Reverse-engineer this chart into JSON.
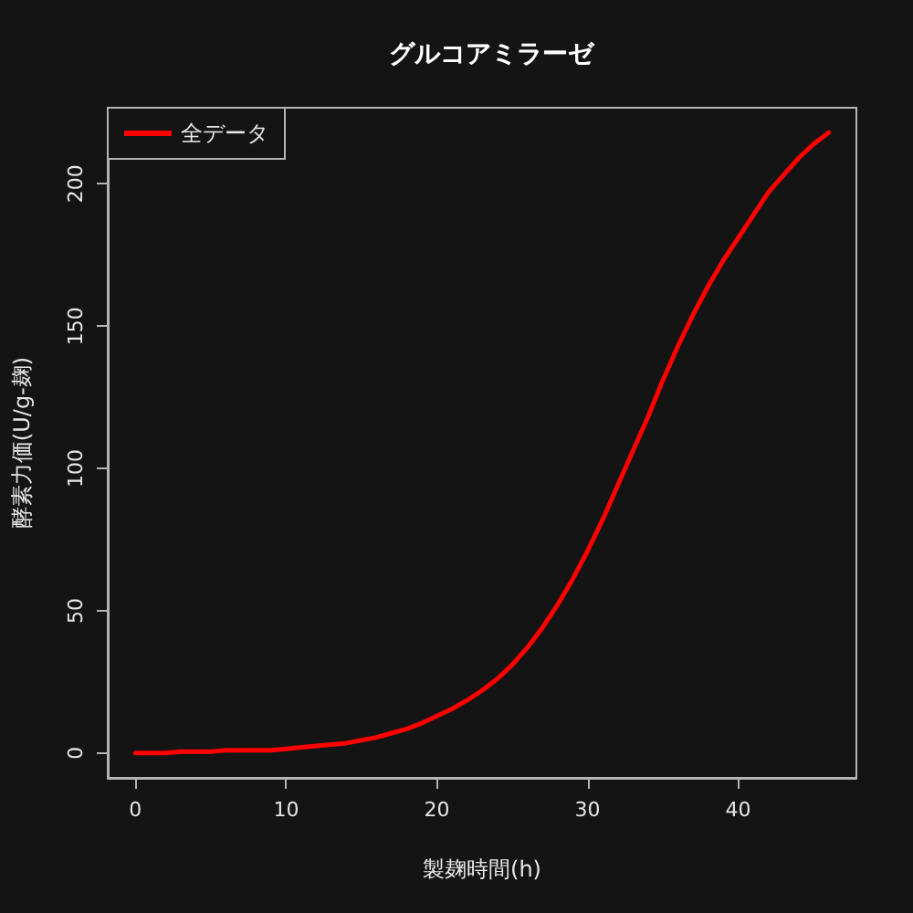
{
  "chart_data": {
    "type": "line",
    "title": "グルコアミラーゼ",
    "xlabel": "製麹時間(h)",
    "ylabel": "酵素力価(U/g-麹)",
    "x": [
      0,
      1,
      2,
      3,
      4,
      5,
      6,
      7,
      8,
      9,
      10,
      11,
      12,
      13,
      14,
      15,
      16,
      17,
      18,
      19,
      20,
      21,
      22,
      23,
      24,
      25,
      26,
      27,
      28,
      29,
      30,
      31,
      32,
      33,
      34,
      35,
      36,
      37,
      38,
      39,
      40,
      41,
      42,
      43,
      44,
      45,
      46
    ],
    "series": [
      {
        "name": "全データ",
        "color": "#ff0000",
        "values": [
          0,
          0,
          0,
          0.5,
          0.5,
          0.5,
          1,
          1,
          1,
          1,
          1.5,
          2,
          2.5,
          3,
          3.5,
          4.5,
          5.5,
          7,
          8.5,
          10.5,
          13,
          15.5,
          18.5,
          22,
          26,
          31,
          37,
          44,
          52,
          61,
          71,
          82,
          94,
          106,
          118,
          131,
          143,
          154,
          164,
          173,
          181,
          189,
          197,
          203,
          209,
          214,
          218
        ]
      }
    ],
    "xlim": [
      -1.84,
      47.84
    ],
    "ylim": [
      -8.72,
      226.72
    ],
    "xticks": [
      0,
      10,
      20,
      30,
      40
    ],
    "yticks": [
      0,
      50,
      100,
      150,
      200
    ],
    "legend": "top left",
    "marker": "none",
    "line_style": "solid"
  }
}
